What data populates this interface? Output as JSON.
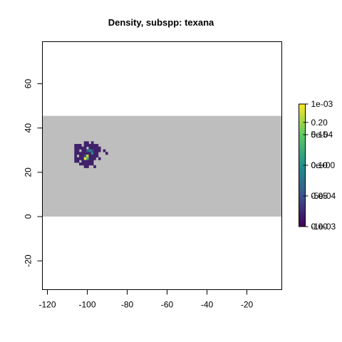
{
  "chart_data": {
    "type": "heatmap",
    "title": "Density, subspp: texana",
    "xlabel": "",
    "ylabel": "",
    "xlim": [
      -122.5,
      -2.5
    ],
    "ylim": [
      -33,
      79
    ],
    "x_ticks": [
      -120,
      -100,
      -80,
      -60,
      -40,
      -20
    ],
    "y_ticks": [
      -20,
      0,
      20,
      40,
      60
    ],
    "background_band": {
      "x": [
        -122.5,
        -2.5
      ],
      "y": [
        0,
        45.5
      ],
      "color": "#bebebe"
    },
    "colorbar": {
      "palette": [
        "#440154",
        "#3b528b",
        "#21908c",
        "#5dc863",
        "#fde725"
      ],
      "labels_a": [
        "0e+00",
        "5e-04",
        "1e-03"
      ],
      "positions_a": [
        0.5,
        0.75,
        1.0
      ],
      "labels_b": [
        "0.00",
        "0.05",
        "0.10",
        "0.15",
        "0.20"
      ],
      "positions_b": [
        0.0,
        0.25,
        0.5,
        0.75,
        0.85
      ],
      "labels_c": [
        "-5e-04",
        "-1e-03"
      ],
      "positions_c": [
        0.25,
        0.0
      ]
    },
    "cells_ascii": {
      "origin": [
        -106.5,
        34.0
      ],
      "cell_w": 1.2,
      "cell_h": 1.2,
      "legend": {
        ".": null,
        "a": 0.02,
        "b": 0.05,
        "c": 0.09,
        "d": 0.13,
        "e": 0.18,
        "f": 0.2
      },
      "rows": [
        "....aa.a..........",
        "aaa.aaaaaa........",
        "aaaaa.aaaaa.......",
        "aa.aabcbaaa.a.....",
        "aaaaaaacaa...a....",
        "a.aabeaaaa........",
        "aaaafdaaa.a.......",
        "aa.aaaaa..........",
        "..aaaaaa..........",
        "....aa..a........."
      ]
    }
  }
}
